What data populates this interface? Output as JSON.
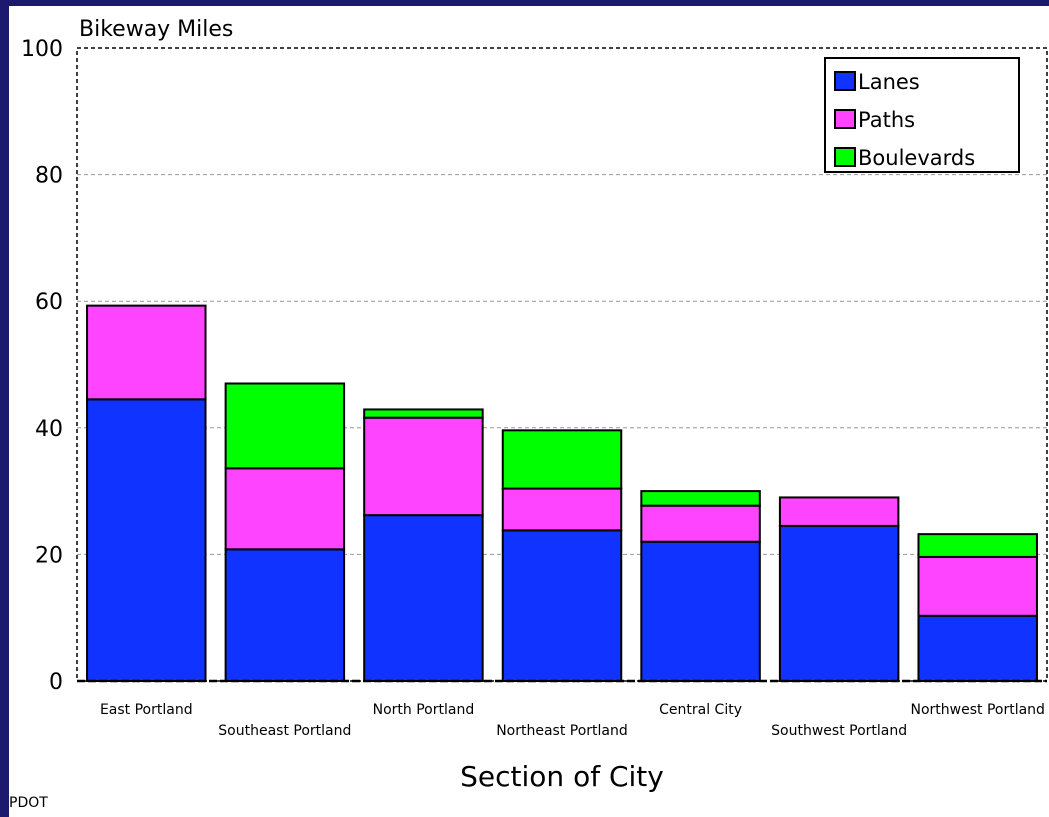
{
  "colors": {
    "frame_background": "#1b1a6e",
    "panel_background": "#ffffff",
    "Lanes": "#1133ff",
    "Paths": "#ff44ff",
    "Boulevards": "#00ff00"
  },
  "source_note": "PDOT",
  "chart_data": {
    "type": "bar",
    "stacked": true,
    "title": "Bikeway Miles",
    "xlabel": "Section of City",
    "ylabel": "",
    "ylim": [
      0,
      100
    ],
    "yticks": [
      0,
      20,
      40,
      60,
      80,
      100
    ],
    "grid": true,
    "legend_position": "top-right",
    "categories": [
      "East Portland",
      "Southeast Portland",
      "North Portland",
      "Northeast Portland",
      "Central City",
      "Southwest Portland",
      "Northwest Portland"
    ],
    "series": [
      {
        "name": "Lanes",
        "values": [
          44.5,
          20.8,
          26.2,
          23.8,
          22.0,
          24.5,
          10.3
        ]
      },
      {
        "name": "Paths",
        "values": [
          14.8,
          12.8,
          15.4,
          6.6,
          5.7,
          4.5,
          9.3
        ]
      },
      {
        "name": "Boulevards",
        "values": [
          0,
          13.4,
          1.3,
          9.2,
          2.3,
          0,
          3.6
        ]
      }
    ]
  }
}
